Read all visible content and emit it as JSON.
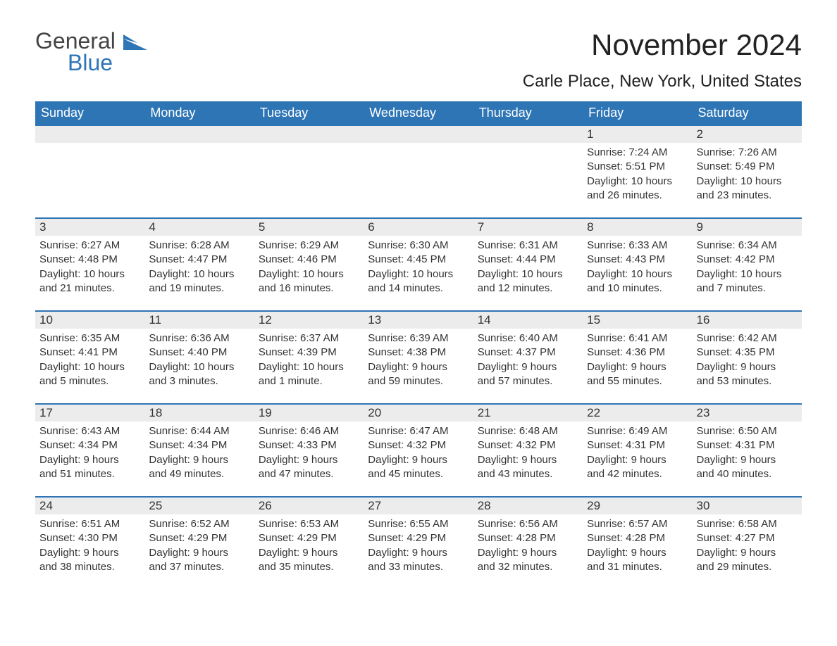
{
  "brand": {
    "word1": "General",
    "word2": "Blue",
    "word1_color": "#444444",
    "word2_color": "#2e75b6",
    "icon_color": "#2e75b6"
  },
  "header": {
    "month_title": "November 2024",
    "location": "Carle Place, New York, United States"
  },
  "styling": {
    "header_bg": "#2e75b6",
    "header_text_color": "#ffffff",
    "daynum_bg": "#ececec",
    "daynum_border_top": "#2e75b6",
    "body_text_color": "#333333",
    "page_bg": "#ffffff",
    "header_fontsize": 18,
    "month_title_fontsize": 42,
    "location_fontsize": 24,
    "daynum_fontsize": 17,
    "daybody_fontsize": 15
  },
  "weekdays": [
    "Sunday",
    "Monday",
    "Tuesday",
    "Wednesday",
    "Thursday",
    "Friday",
    "Saturday"
  ],
  "labels": {
    "sunrise": "Sunrise:",
    "sunset": "Sunset:",
    "daylight": "Daylight:"
  },
  "weeks": [
    [
      null,
      null,
      null,
      null,
      null,
      {
        "n": "1",
        "sunrise": "7:24 AM",
        "sunset": "5:51 PM",
        "daylight1": "10 hours",
        "daylight2": "and 26 minutes."
      },
      {
        "n": "2",
        "sunrise": "7:26 AM",
        "sunset": "5:49 PM",
        "daylight1": "10 hours",
        "daylight2": "and 23 minutes."
      }
    ],
    [
      {
        "n": "3",
        "sunrise": "6:27 AM",
        "sunset": "4:48 PM",
        "daylight1": "10 hours",
        "daylight2": "and 21 minutes."
      },
      {
        "n": "4",
        "sunrise": "6:28 AM",
        "sunset": "4:47 PM",
        "daylight1": "10 hours",
        "daylight2": "and 19 minutes."
      },
      {
        "n": "5",
        "sunrise": "6:29 AM",
        "sunset": "4:46 PM",
        "daylight1": "10 hours",
        "daylight2": "and 16 minutes."
      },
      {
        "n": "6",
        "sunrise": "6:30 AM",
        "sunset": "4:45 PM",
        "daylight1": "10 hours",
        "daylight2": "and 14 minutes."
      },
      {
        "n": "7",
        "sunrise": "6:31 AM",
        "sunset": "4:44 PM",
        "daylight1": "10 hours",
        "daylight2": "and 12 minutes."
      },
      {
        "n": "8",
        "sunrise": "6:33 AM",
        "sunset": "4:43 PM",
        "daylight1": "10 hours",
        "daylight2": "and 10 minutes."
      },
      {
        "n": "9",
        "sunrise": "6:34 AM",
        "sunset": "4:42 PM",
        "daylight1": "10 hours",
        "daylight2": "and 7 minutes."
      }
    ],
    [
      {
        "n": "10",
        "sunrise": "6:35 AM",
        "sunset": "4:41 PM",
        "daylight1": "10 hours",
        "daylight2": "and 5 minutes."
      },
      {
        "n": "11",
        "sunrise": "6:36 AM",
        "sunset": "4:40 PM",
        "daylight1": "10 hours",
        "daylight2": "and 3 minutes."
      },
      {
        "n": "12",
        "sunrise": "6:37 AM",
        "sunset": "4:39 PM",
        "daylight1": "10 hours",
        "daylight2": "and 1 minute."
      },
      {
        "n": "13",
        "sunrise": "6:39 AM",
        "sunset": "4:38 PM",
        "daylight1": "9 hours",
        "daylight2": "and 59 minutes."
      },
      {
        "n": "14",
        "sunrise": "6:40 AM",
        "sunset": "4:37 PM",
        "daylight1": "9 hours",
        "daylight2": "and 57 minutes."
      },
      {
        "n": "15",
        "sunrise": "6:41 AM",
        "sunset": "4:36 PM",
        "daylight1": "9 hours",
        "daylight2": "and 55 minutes."
      },
      {
        "n": "16",
        "sunrise": "6:42 AM",
        "sunset": "4:35 PM",
        "daylight1": "9 hours",
        "daylight2": "and 53 minutes."
      }
    ],
    [
      {
        "n": "17",
        "sunrise": "6:43 AM",
        "sunset": "4:34 PM",
        "daylight1": "9 hours",
        "daylight2": "and 51 minutes."
      },
      {
        "n": "18",
        "sunrise": "6:44 AM",
        "sunset": "4:34 PM",
        "daylight1": "9 hours",
        "daylight2": "and 49 minutes."
      },
      {
        "n": "19",
        "sunrise": "6:46 AM",
        "sunset": "4:33 PM",
        "daylight1": "9 hours",
        "daylight2": "and 47 minutes."
      },
      {
        "n": "20",
        "sunrise": "6:47 AM",
        "sunset": "4:32 PM",
        "daylight1": "9 hours",
        "daylight2": "and 45 minutes."
      },
      {
        "n": "21",
        "sunrise": "6:48 AM",
        "sunset": "4:32 PM",
        "daylight1": "9 hours",
        "daylight2": "and 43 minutes."
      },
      {
        "n": "22",
        "sunrise": "6:49 AM",
        "sunset": "4:31 PM",
        "daylight1": "9 hours",
        "daylight2": "and 42 minutes."
      },
      {
        "n": "23",
        "sunrise": "6:50 AM",
        "sunset": "4:31 PM",
        "daylight1": "9 hours",
        "daylight2": "and 40 minutes."
      }
    ],
    [
      {
        "n": "24",
        "sunrise": "6:51 AM",
        "sunset": "4:30 PM",
        "daylight1": "9 hours",
        "daylight2": "and 38 minutes."
      },
      {
        "n": "25",
        "sunrise": "6:52 AM",
        "sunset": "4:29 PM",
        "daylight1": "9 hours",
        "daylight2": "and 37 minutes."
      },
      {
        "n": "26",
        "sunrise": "6:53 AM",
        "sunset": "4:29 PM",
        "daylight1": "9 hours",
        "daylight2": "and 35 minutes."
      },
      {
        "n": "27",
        "sunrise": "6:55 AM",
        "sunset": "4:29 PM",
        "daylight1": "9 hours",
        "daylight2": "and 33 minutes."
      },
      {
        "n": "28",
        "sunrise": "6:56 AM",
        "sunset": "4:28 PM",
        "daylight1": "9 hours",
        "daylight2": "and 32 minutes."
      },
      {
        "n": "29",
        "sunrise": "6:57 AM",
        "sunset": "4:28 PM",
        "daylight1": "9 hours",
        "daylight2": "and 31 minutes."
      },
      {
        "n": "30",
        "sunrise": "6:58 AM",
        "sunset": "4:27 PM",
        "daylight1": "9 hours",
        "daylight2": "and 29 minutes."
      }
    ]
  ]
}
